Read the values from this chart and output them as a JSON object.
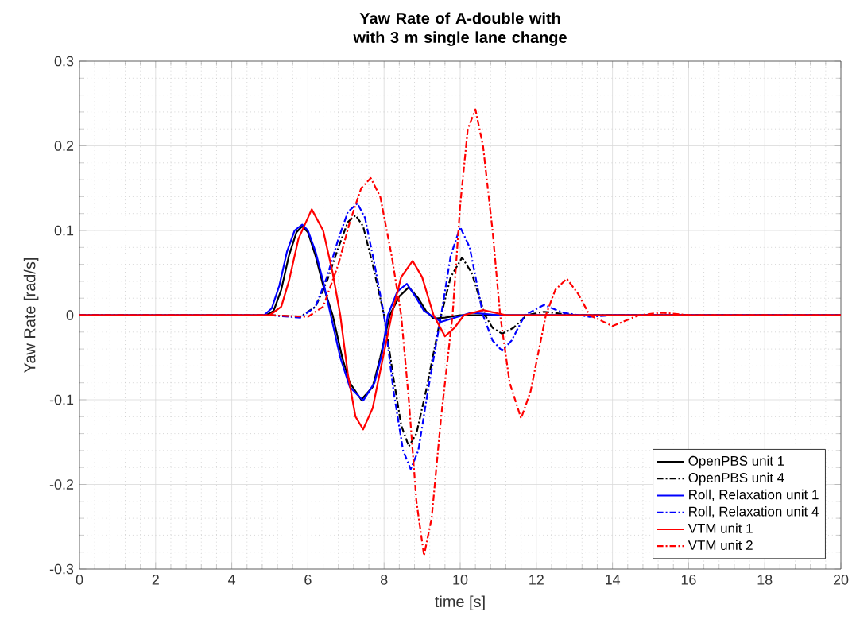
{
  "chart_data": {
    "type": "line",
    "title": "Yaw Rate of A-double with\nwith 3 m single lane change",
    "xlabel": "time [s]",
    "ylabel": "Yaw Rate [rad/s]",
    "xlim": [
      0,
      20
    ],
    "ylim": [
      -0.3,
      0.3
    ],
    "xticks": [
      0,
      2,
      4,
      6,
      8,
      10,
      12,
      14,
      16,
      18,
      20
    ],
    "yticks": [
      -0.3,
      -0.2,
      -0.1,
      0,
      0.1,
      0.2,
      0.3
    ],
    "grid": true,
    "legend": "bottom right",
    "marker": "none",
    "series": [
      {
        "name": "OpenPBS unit 1",
        "color": "#000000",
        "line_style": "solid",
        "x": [
          0,
          4.9,
          5.1,
          5.3,
          5.5,
          5.7,
          5.85,
          6.0,
          6.2,
          6.4,
          6.65,
          6.9,
          7.1,
          7.4,
          7.7,
          7.9,
          8.15,
          8.4,
          8.65,
          8.9,
          9.1,
          9.3,
          9.6,
          10,
          20
        ],
        "values": [
          0,
          0,
          0.005,
          0.03,
          0.07,
          0.098,
          0.105,
          0.098,
          0.07,
          0.035,
          0,
          -0.05,
          -0.08,
          -0.1,
          -0.085,
          -0.05,
          0,
          0.022,
          0.033,
          0.02,
          0.005,
          -0.004,
          -0.003,
          0,
          0
        ]
      },
      {
        "name": "OpenPBS unit 4",
        "color": "#000000",
        "line_style": "dashdot",
        "x": [
          0,
          5.0,
          5.8,
          6.2,
          6.5,
          6.8,
          7.05,
          7.25,
          7.45,
          7.7,
          8.0,
          8.25,
          8.45,
          8.65,
          8.85,
          9.1,
          9.5,
          9.75,
          10.05,
          10.3,
          10.65,
          10.85,
          11.1,
          11.4,
          11.75,
          12.2,
          13,
          20
        ],
        "values": [
          0,
          0,
          -0.002,
          0.01,
          0.04,
          0.08,
          0.11,
          0.118,
          0.105,
          0.06,
          0,
          -0.075,
          -0.13,
          -0.155,
          -0.14,
          -0.09,
          0,
          0.045,
          0.068,
          0.05,
          0,
          -0.015,
          -0.022,
          -0.015,
          0,
          0.004,
          0,
          0
        ]
      },
      {
        "name": "Roll, Relaxation unit 1",
        "color": "#0000ff",
        "line_style": "solid",
        "x": [
          0,
          4.85,
          5.05,
          5.25,
          5.45,
          5.65,
          5.85,
          6.0,
          6.2,
          6.4,
          6.6,
          6.85,
          7.1,
          7.45,
          7.75,
          7.95,
          8.1,
          8.35,
          8.6,
          8.85,
          9.05,
          9.5,
          10.3,
          11,
          20
        ],
        "values": [
          0,
          0,
          0.008,
          0.035,
          0.075,
          0.1,
          0.107,
          0.1,
          0.075,
          0.04,
          0,
          -0.05,
          -0.085,
          -0.101,
          -0.08,
          -0.045,
          0,
          0.028,
          0.037,
          0.02,
          0.005,
          -0.008,
          0.003,
          0,
          0
        ]
      },
      {
        "name": "Roll, Relaxation unit 4",
        "color": "#0000ff",
        "line_style": "dashdot",
        "x": [
          0,
          5.0,
          5.8,
          6.2,
          6.5,
          6.8,
          7.05,
          7.3,
          7.5,
          7.75,
          8.0,
          8.25,
          8.5,
          8.7,
          8.9,
          9.15,
          9.5,
          9.75,
          10.0,
          10.25,
          10.6,
          10.85,
          11.1,
          11.35,
          11.7,
          12.2,
          12.7,
          13.4,
          14,
          20
        ],
        "values": [
          0,
          0,
          -0.003,
          0.01,
          0.045,
          0.09,
          0.122,
          0.132,
          0.115,
          0.06,
          0,
          -0.09,
          -0.16,
          -0.182,
          -0.16,
          -0.09,
          0,
          0.07,
          0.104,
          0.08,
          0,
          -0.03,
          -0.042,
          -0.03,
          0,
          0.012,
          0.003,
          -0.002,
          0,
          0
        ]
      },
      {
        "name": "VTM unit 1",
        "color": "#ff0000",
        "line_style": "solid",
        "x": [
          0,
          5.0,
          5.3,
          5.5,
          5.75,
          6.1,
          6.4,
          6.65,
          6.85,
          7.05,
          7.25,
          7.45,
          7.7,
          7.95,
          8.2,
          8.45,
          8.75,
          9.0,
          9.3,
          9.6,
          9.85,
          10.1,
          10.6,
          11.2,
          20
        ],
        "values": [
          0,
          0,
          0.01,
          0.04,
          0.09,
          0.125,
          0.1,
          0.05,
          0,
          -0.07,
          -0.12,
          -0.135,
          -0.11,
          -0.055,
          0,
          0.045,
          0.064,
          0.045,
          0,
          -0.025,
          -0.015,
          0,
          0.006,
          0,
          0
        ]
      },
      {
        "name": "VTM unit 2",
        "color": "#ff0000",
        "line_style": "dashdot",
        "x": [
          0,
          5.0,
          6.0,
          6.4,
          6.8,
          7.1,
          7.4,
          7.65,
          7.9,
          8.2,
          8.45,
          8.65,
          8.85,
          9.05,
          9.25,
          9.5,
          9.8,
          10.0,
          10.2,
          10.4,
          10.6,
          10.85,
          11.05,
          11.3,
          11.6,
          11.85,
          12.25,
          12.5,
          12.8,
          13.1,
          13.4,
          14.0,
          14.7,
          15.3,
          16,
          20
        ],
        "values": [
          0,
          0,
          -0.002,
          0.01,
          0.06,
          0.11,
          0.15,
          0.162,
          0.14,
          0.07,
          0,
          -0.1,
          -0.22,
          -0.284,
          -0.24,
          -0.12,
          0,
          0.13,
          0.22,
          0.243,
          0.2,
          0.1,
          0,
          -0.08,
          -0.122,
          -0.09,
          0,
          0.03,
          0.043,
          0.025,
          0,
          -0.013,
          0,
          0.003,
          0,
          0
        ]
      }
    ]
  }
}
